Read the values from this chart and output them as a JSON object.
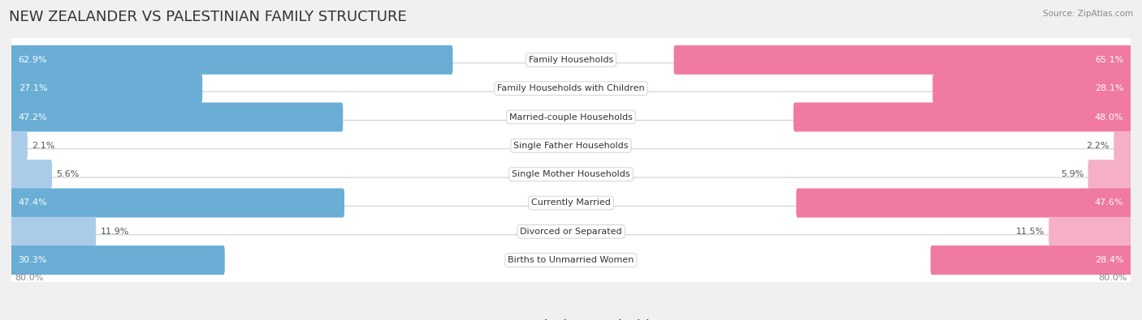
{
  "title": "NEW ZEALANDER VS PALESTINIAN FAMILY STRUCTURE",
  "source": "Source: ZipAtlas.com",
  "categories": [
    "Family Households",
    "Family Households with Children",
    "Married-couple Households",
    "Single Father Households",
    "Single Mother Households",
    "Currently Married",
    "Divorced or Separated",
    "Births to Unmarried Women"
  ],
  "nz_values": [
    62.9,
    27.1,
    47.2,
    2.1,
    5.6,
    47.4,
    11.9,
    30.3
  ],
  "pal_values": [
    65.1,
    28.1,
    48.0,
    2.2,
    5.9,
    47.6,
    11.5,
    28.4
  ],
  "axis_max": 80.0,
  "nz_color_strong": "#6aaed6",
  "nz_color_light": "#aacce8",
  "pal_color_strong": "#f07aa0",
  "pal_color_light": "#f5b0c8",
  "bg_color": "#f0f0f0",
  "row_bg": "#ffffff",
  "title_fontsize": 13,
  "label_fontsize": 8.0,
  "value_fontsize": 8.0,
  "axis_label_fontsize": 8,
  "legend_fontsize": 9,
  "nz_label": "New Zealander",
  "pal_label": "Palestinian",
  "x_left_label": "80.0%",
  "x_right_label": "80.0%",
  "value_threshold": 15
}
